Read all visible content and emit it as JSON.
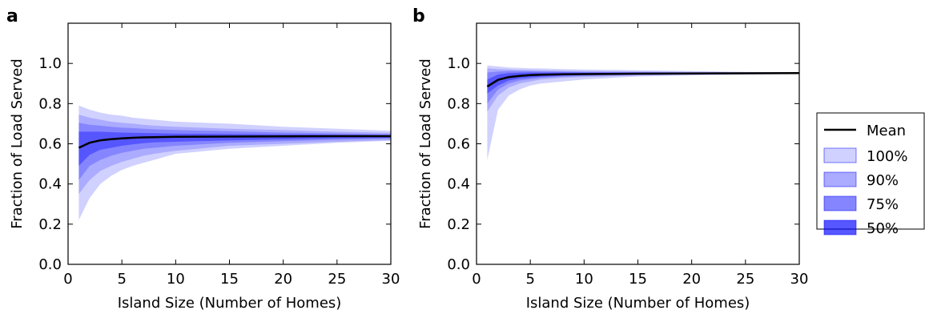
{
  "legend": {
    "placement": "right",
    "mean_label": "Mean",
    "band_labels": [
      "100%",
      "90%",
      "75%",
      "50%"
    ],
    "line_color": "#000000",
    "band_color": "#0000ff",
    "band_opacities": [
      0.18,
      0.18,
      0.22,
      0.35
    ]
  },
  "chart_data": [
    {
      "type": "area",
      "panel_label": "a",
      "xlabel": "Island Size (Number of Homes)",
      "ylabel": "Fraction of Load Served",
      "xlim": [
        0,
        30
      ],
      "ylim": [
        0,
        1.2
      ],
      "xticks": [
        0,
        5,
        10,
        15,
        20,
        25,
        30
      ],
      "yticks": [
        0.0,
        0.2,
        0.4,
        0.6,
        0.8,
        1.0
      ],
      "ytick_labels": [
        "0.0",
        "0.2",
        "0.4",
        "0.6",
        "0.8",
        "1.0"
      ],
      "grid": false,
      "x": [
        1,
        2,
        3,
        4,
        5,
        6,
        7,
        8,
        10,
        15,
        20,
        25,
        30
      ],
      "mean": [
        0.58,
        0.605,
        0.617,
        0.623,
        0.627,
        0.63,
        0.632,
        0.633,
        0.635,
        0.636,
        0.637,
        0.638,
        0.638
      ],
      "bands": [
        {
          "name": "100%",
          "lower": [
            0.22,
            0.33,
            0.4,
            0.44,
            0.47,
            0.49,
            0.505,
            0.52,
            0.55,
            0.575,
            0.59,
            0.605,
            0.615
          ],
          "upper": [
            0.79,
            0.77,
            0.755,
            0.745,
            0.74,
            0.73,
            0.725,
            0.72,
            0.71,
            0.7,
            0.685,
            0.675,
            0.665
          ]
        },
        {
          "name": "90%",
          "lower": [
            0.35,
            0.42,
            0.465,
            0.49,
            0.51,
            0.525,
            0.54,
            0.55,
            0.565,
            0.59,
            0.6,
            0.61,
            0.618
          ]
        },
        {
          "name": "75%",
          "lower": [
            0.42,
            0.49,
            0.52,
            0.54,
            0.555,
            0.565,
            0.575,
            0.58,
            0.59,
            0.605,
            0.613,
            0.62,
            0.625
          ]
        },
        {
          "name": "50%",
          "lower": [
            0.49,
            0.545,
            0.57,
            0.58,
            0.59,
            0.597,
            0.603,
            0.607,
            0.61,
            0.617,
            0.622,
            0.627,
            0.63
          ]
        }
      ],
      "band_uppers": {
        "90%": [
          0.745,
          0.73,
          0.72,
          0.71,
          0.705,
          0.7,
          0.695,
          0.69,
          0.685,
          0.675,
          0.668,
          0.66,
          0.655
        ],
        "75%": [
          0.705,
          0.695,
          0.69,
          0.685,
          0.68,
          0.678,
          0.675,
          0.672,
          0.668,
          0.662,
          0.656,
          0.652,
          0.648
        ],
        "50%": [
          0.66,
          0.66,
          0.66,
          0.658,
          0.656,
          0.655,
          0.654,
          0.653,
          0.651,
          0.649,
          0.647,
          0.645,
          0.643
        ]
      }
    },
    {
      "type": "area",
      "panel_label": "b",
      "xlabel": "Island Size (Number of Homes)",
      "ylabel": "Fraction of Load Served",
      "xlim": [
        0,
        30
      ],
      "ylim": [
        0,
        1.2
      ],
      "xticks": [
        0,
        5,
        10,
        15,
        20,
        25,
        30
      ],
      "yticks": [
        0.0,
        0.2,
        0.4,
        0.6,
        0.8,
        1.0
      ],
      "ytick_labels": [
        "0.0",
        "0.2",
        "0.4",
        "0.6",
        "0.8",
        "1.0"
      ],
      "grid": false,
      "x": [
        1,
        2,
        3,
        4,
        5,
        6,
        8,
        10,
        15,
        20,
        25,
        30
      ],
      "mean": [
        0.885,
        0.918,
        0.932,
        0.938,
        0.942,
        0.944,
        0.946,
        0.947,
        0.949,
        0.95,
        0.951,
        0.952
      ],
      "bands": [
        {
          "name": "100%",
          "lower": [
            0.52,
            0.77,
            0.84,
            0.87,
            0.89,
            0.9,
            0.91,
            0.92,
            0.935,
            0.94,
            0.945,
            0.948
          ],
          "upper": [
            0.99,
            0.985,
            0.98,
            0.978,
            0.976,
            0.975,
            0.972,
            0.97,
            0.966,
            0.962,
            0.958,
            0.956
          ]
        },
        {
          "name": "90%",
          "lower": [
            0.76,
            0.84,
            0.88,
            0.9,
            0.91,
            0.92,
            0.928,
            0.932,
            0.94,
            0.944,
            0.947,
            0.95
          ]
        },
        {
          "name": "75%",
          "lower": [
            0.8,
            0.87,
            0.9,
            0.915,
            0.922,
            0.928,
            0.934,
            0.938,
            0.943,
            0.946,
            0.949,
            0.951
          ]
        },
        {
          "name": "50%",
          "lower": [
            0.85,
            0.89,
            0.915,
            0.925,
            0.93,
            0.934,
            0.939,
            0.942,
            0.945,
            0.948,
            0.95,
            0.951
          ]
        }
      ],
      "band_uppers": {
        "90%": [
          0.975,
          0.972,
          0.97,
          0.968,
          0.967,
          0.966,
          0.964,
          0.962,
          0.96,
          0.958,
          0.956,
          0.955
        ],
        "75%": [
          0.955,
          0.96,
          0.962,
          0.962,
          0.961,
          0.96,
          0.959,
          0.958,
          0.957,
          0.956,
          0.955,
          0.954
        ],
        "50%": [
          0.92,
          0.945,
          0.952,
          0.954,
          0.955,
          0.955,
          0.955,
          0.954,
          0.954,
          0.954,
          0.953,
          0.953
        ]
      }
    }
  ]
}
